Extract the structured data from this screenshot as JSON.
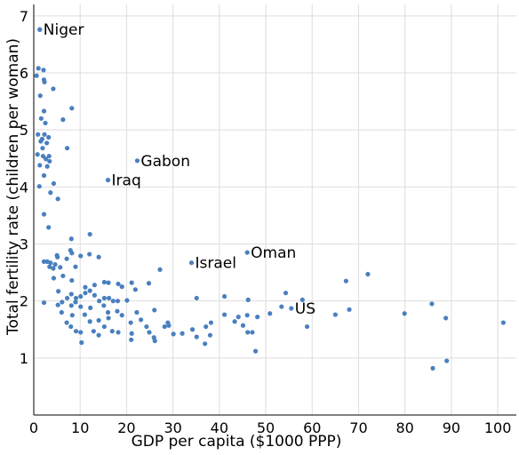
{
  "chart_data": {
    "type": "scatter",
    "title": "",
    "xlabel": "GDP per capita ($1000 PPP)",
    "ylabel": "Total fertility rate (children per woman)",
    "xlim": [
      0,
      104
    ],
    "ylim": [
      0,
      7.2
    ],
    "xticks": [
      0,
      10,
      20,
      30,
      40,
      50,
      60,
      70,
      80,
      90,
      100
    ],
    "yticks": [
      1,
      2,
      3,
      4,
      5,
      6,
      7
    ],
    "grid": true,
    "marker_color": "#4a7fbf",
    "annotations": [
      {
        "label": "Niger",
        "x": 1.3,
        "y": 6.76
      },
      {
        "label": "Gabon",
        "x": 22.3,
        "y": 4.46
      },
      {
        "label": "Iraq",
        "x": 16.0,
        "y": 4.12
      },
      {
        "label": "Israel",
        "x": 34.0,
        "y": 2.67
      },
      {
        "label": "Oman",
        "x": 46.0,
        "y": 2.85
      },
      {
        "label": "US",
        "x": 55.5,
        "y": 1.87
      }
    ],
    "points": [
      [
        1.3,
        6.76
      ],
      [
        1.0,
        6.08
      ],
      [
        2.1,
        6.05
      ],
      [
        0.6,
        5.95
      ],
      [
        2.2,
        5.88
      ],
      [
        2.3,
        5.84
      ],
      [
        4.2,
        5.72
      ],
      [
        1.4,
        5.6
      ],
      [
        8.2,
        5.38
      ],
      [
        2.2,
        5.33
      ],
      [
        1.6,
        5.2
      ],
      [
        6.3,
        5.18
      ],
      [
        2.5,
        5.12
      ],
      [
        0.9,
        4.92
      ],
      [
        2.3,
        4.92
      ],
      [
        3.2,
        4.87
      ],
      [
        1.8,
        4.84
      ],
      [
        1.5,
        4.8
      ],
      [
        2.8,
        4.77
      ],
      [
        1.9,
        4.68
      ],
      [
        7.2,
        4.68
      ],
      [
        0.8,
        4.57
      ],
      [
        2.0,
        4.54
      ],
      [
        2.6,
        4.49
      ],
      [
        3.3,
        4.54
      ],
      [
        3.4,
        4.45
      ],
      [
        1.3,
        4.38
      ],
      [
        2.9,
        4.36
      ],
      [
        2.2,
        4.2
      ],
      [
        4.3,
        4.06
      ],
      [
        1.2,
        4.01
      ],
      [
        3.6,
        3.9
      ],
      [
        5.2,
        3.79
      ],
      [
        2.2,
        3.52
      ],
      [
        3.2,
        3.29
      ],
      [
        12.1,
        3.17
      ],
      [
        8.1,
        3.09
      ],
      [
        7.9,
        2.89
      ],
      [
        8.2,
        2.84
      ],
      [
        10.1,
        2.79
      ],
      [
        12.0,
        2.82
      ],
      [
        14.0,
        2.77
      ],
      [
        5.0,
        2.8
      ],
      [
        5.1,
        2.77
      ],
      [
        4.6,
        2.64
      ],
      [
        2.2,
        2.69
      ],
      [
        2.9,
        2.69
      ],
      [
        3.6,
        2.67
      ],
      [
        3.4,
        2.6
      ],
      [
        5.7,
        2.59
      ],
      [
        4.2,
        2.57
      ],
      [
        7.1,
        2.74
      ],
      [
        9.0,
        2.6
      ],
      [
        27.2,
        2.55
      ],
      [
        6.3,
        2.44
      ],
      [
        4.3,
        2.4
      ],
      [
        8.2,
        2.36
      ],
      [
        15.2,
        2.33
      ],
      [
        16.1,
        2.32
      ],
      [
        18.2,
        2.3
      ],
      [
        21.1,
        2.32
      ],
      [
        24.8,
        2.31
      ],
      [
        13.1,
        2.28
      ],
      [
        11.1,
        2.24
      ],
      [
        12.1,
        2.18
      ],
      [
        11.1,
        2.14
      ],
      [
        13.1,
        2.1
      ],
      [
        10.1,
        2.08
      ],
      [
        15.2,
        2.05
      ],
      [
        16.2,
        2.05
      ],
      [
        19.0,
        2.25
      ],
      [
        21.9,
        2.2
      ],
      [
        5.3,
        2.17
      ],
      [
        8.1,
        2.12
      ],
      [
        9.1,
        2.05
      ],
      [
        7.2,
        2.05
      ],
      [
        9.0,
        1.98
      ],
      [
        6.1,
        1.98
      ],
      [
        14.1,
        2.0
      ],
      [
        17.1,
        2.0
      ],
      [
        20.1,
        2.01
      ],
      [
        18.1,
        2.0
      ],
      [
        2.2,
        1.97
      ],
      [
        5.2,
        1.93
      ],
      [
        8.1,
        1.92
      ],
      [
        10.1,
        1.9
      ],
      [
        12.2,
        1.88
      ],
      [
        15.1,
        1.92
      ],
      [
        18.0,
        1.82
      ],
      [
        16.0,
        1.8
      ],
      [
        22.2,
        1.8
      ],
      [
        26.0,
        1.84
      ],
      [
        35.1,
        2.05
      ],
      [
        41.1,
        2.08
      ],
      [
        46.2,
        2.02
      ],
      [
        54.3,
        2.14
      ],
      [
        57.9,
        2.02
      ],
      [
        67.3,
        2.35
      ],
      [
        72.0,
        2.47
      ],
      [
        6.0,
        1.8
      ],
      [
        8.3,
        1.75
      ],
      [
        11.0,
        1.76
      ],
      [
        12.1,
        1.64
      ],
      [
        14.0,
        1.66
      ],
      [
        16.1,
        1.7
      ],
      [
        20.9,
        1.62
      ],
      [
        19.0,
        1.75
      ],
      [
        23.1,
        1.67
      ],
      [
        24.3,
        1.55
      ],
      [
        28.2,
        1.55
      ],
      [
        28.9,
        1.62
      ],
      [
        29.1,
        1.57
      ],
      [
        34.2,
        1.5
      ],
      [
        37.1,
        1.55
      ],
      [
        38.2,
        1.62
      ],
      [
        41.1,
        1.76
      ],
      [
        44.1,
        1.72
      ],
      [
        46.0,
        1.75
      ],
      [
        48.2,
        1.72
      ],
      [
        50.9,
        1.78
      ],
      [
        53.4,
        1.9
      ],
      [
        58.9,
        1.55
      ],
      [
        65.0,
        1.76
      ],
      [
        68.0,
        1.85
      ],
      [
        79.9,
        1.78
      ],
      [
        85.8,
        1.95
      ],
      [
        88.8,
        1.7
      ],
      [
        101.2,
        1.62
      ],
      [
        7.1,
        1.62
      ],
      [
        8.0,
        1.55
      ],
      [
        9.1,
        1.47
      ],
      [
        10.1,
        1.45
      ],
      [
        12.9,
        1.47
      ],
      [
        14.0,
        1.4
      ],
      [
        15.2,
        1.55
      ],
      [
        16.9,
        1.47
      ],
      [
        18.2,
        1.45
      ],
      [
        21.1,
        1.43
      ],
      [
        24.9,
        1.45
      ],
      [
        25.9,
        1.36
      ],
      [
        26.1,
        1.3
      ],
      [
        30.1,
        1.42
      ],
      [
        32.0,
        1.43
      ],
      [
        35.1,
        1.37
      ],
      [
        36.9,
        1.25
      ],
      [
        38.0,
        1.4
      ],
      [
        43.3,
        1.64
      ],
      [
        45.1,
        1.57
      ],
      [
        46.1,
        1.45
      ],
      [
        47.1,
        1.45
      ],
      [
        10.3,
        1.27
      ],
      [
        21.0,
        1.32
      ],
      [
        47.8,
        1.12
      ],
      [
        86.0,
        0.82
      ],
      [
        89.0,
        0.95
      ]
    ]
  }
}
